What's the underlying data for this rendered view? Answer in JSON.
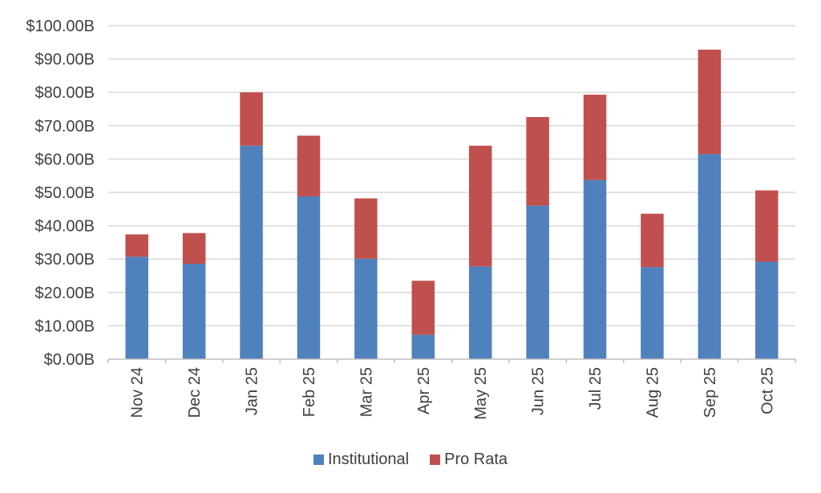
{
  "chart_data": {
    "type": "bar",
    "stacked": true,
    "title": "",
    "xlabel": "",
    "ylabel": "",
    "categories": [
      "Nov 24",
      "Dec 24",
      "Jan 25",
      "Feb 25",
      "Mar 25",
      "Apr 25",
      "May 25",
      "Jun 25",
      "Jul 25",
      "Aug 25",
      "Sep 25",
      "Oct 25"
    ],
    "series": [
      {
        "name": "Institutional",
        "color": "#4F81BD",
        "values": [
          30.7,
          28.6,
          64.0,
          48.8,
          30.1,
          7.3,
          27.8,
          46.0,
          53.7,
          27.6,
          61.5,
          29.2
        ]
      },
      {
        "name": "Pro Rata",
        "color": "#C0504D",
        "values": [
          6.7,
          9.2,
          16.0,
          18.2,
          18.1,
          16.2,
          36.2,
          26.6,
          25.6,
          16.0,
          31.3,
          21.4
        ]
      }
    ],
    "stack_totals": [
      37.4,
      37.8,
      80.0,
      67.0,
      48.2,
      23.5,
      64.0,
      72.6,
      79.3,
      43.6,
      92.8,
      50.6
    ],
    "ylim": [
      0,
      100
    ],
    "ytick_step": 10,
    "ytick_labels": [
      "$0.00B",
      "$10.00B",
      "$20.00B",
      "$30.00B",
      "$40.00B",
      "$50.00B",
      "$60.00B",
      "$70.00B",
      "$80.00B",
      "$90.00B",
      "$100.00B"
    ],
    "grid": true,
    "legend_position": "bottom",
    "x_labels_rotated_degrees": 90,
    "colors": {
      "gridline": "#D9D9D9",
      "axis": "#BFBFBF",
      "label": "#404040",
      "background": "#FFFFFF"
    }
  }
}
